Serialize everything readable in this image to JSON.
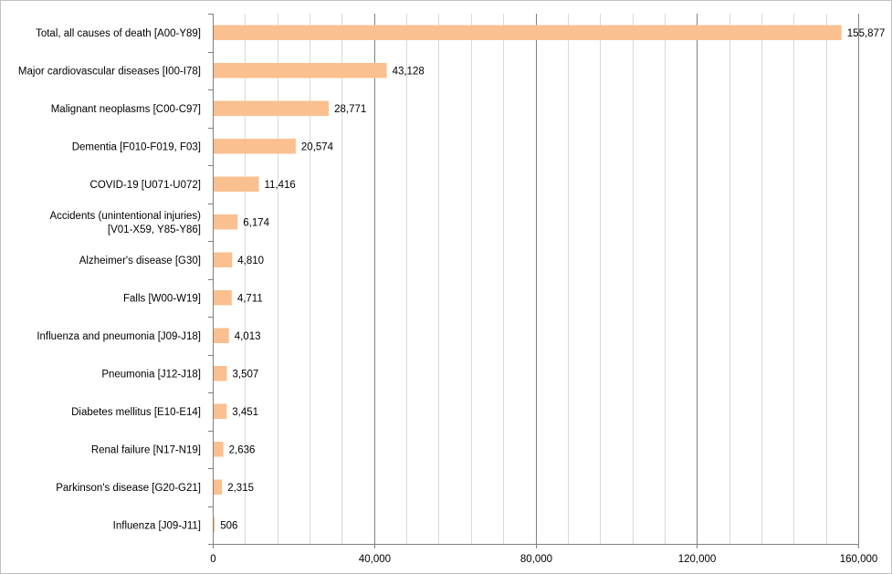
{
  "chart_data": {
    "type": "bar",
    "orientation": "horizontal",
    "categories": [
      "Total, all causes of death [A00-Y89]",
      "Major cardiovascular diseases [I00-I78]",
      "Malignant neoplasms [C00-C97]",
      "Dementia [F010-F019, F03]",
      "COVID-19 [U071-U072]",
      "Accidents (unintentional injuries) [V01-X59, Y85-Y86]",
      "Alzheimer's disease [G30]",
      "Falls [W00-W19]",
      "Influenza and pneumonia [J09-J18]",
      "Pneumonia [J12-J18]",
      "Diabetes mellitus [E10-E14]",
      "Renal failure [N17-N19]",
      "Parkinson's disease [G20-G21]",
      "Influenza [J09-J11]"
    ],
    "category_lines": [
      [
        "Total, all causes of death [A00-Y89]"
      ],
      [
        "Major cardiovascular diseases [I00-I78]"
      ],
      [
        "Malignant neoplasms [C00-C97]"
      ],
      [
        "Dementia [F010-F019, F03]"
      ],
      [
        "COVID-19 [U071-U072]"
      ],
      [
        "Accidents (unintentional injuries)",
        "[V01-X59, Y85-Y86]"
      ],
      [
        "Alzheimer's disease [G30]"
      ],
      [
        "Falls [W00-W19]"
      ],
      [
        "Influenza and pneumonia [J09-J18]"
      ],
      [
        "Pneumonia [J12-J18]"
      ],
      [
        "Diabetes mellitus [E10-E14]"
      ],
      [
        "Renal failure [N17-N19]"
      ],
      [
        "Parkinson's disease [G20-G21]"
      ],
      [
        "Influenza [J09-J11]"
      ]
    ],
    "values": [
      155877,
      43128,
      28771,
      20574,
      11416,
      6174,
      4810,
      4711,
      4013,
      3507,
      3451,
      2636,
      2315,
      506
    ],
    "value_labels": [
      "155,877",
      "43,128",
      "28,771",
      "20,574",
      "11,416",
      "6,174",
      "4,810",
      "4,711",
      "4,013",
      "3,507",
      "3,451",
      "2,636",
      "2,315",
      "506"
    ],
    "xlim": [
      0,
      160000
    ],
    "xticks": [
      0,
      40000,
      80000,
      120000,
      160000
    ],
    "xtick_labels": [
      "0",
      "40,000",
      "80,000",
      "120,000",
      "160,000"
    ],
    "minor_gridlines": true,
    "major_gridlines": true,
    "title": "",
    "xlabel": "",
    "ylabel": "",
    "legend": "none",
    "colors": {
      "bar": "#fac090",
      "major_grid": "#808080",
      "minor_grid": "#d9d9d9",
      "axis": "#808080",
      "border": "#bfbfbf"
    }
  }
}
